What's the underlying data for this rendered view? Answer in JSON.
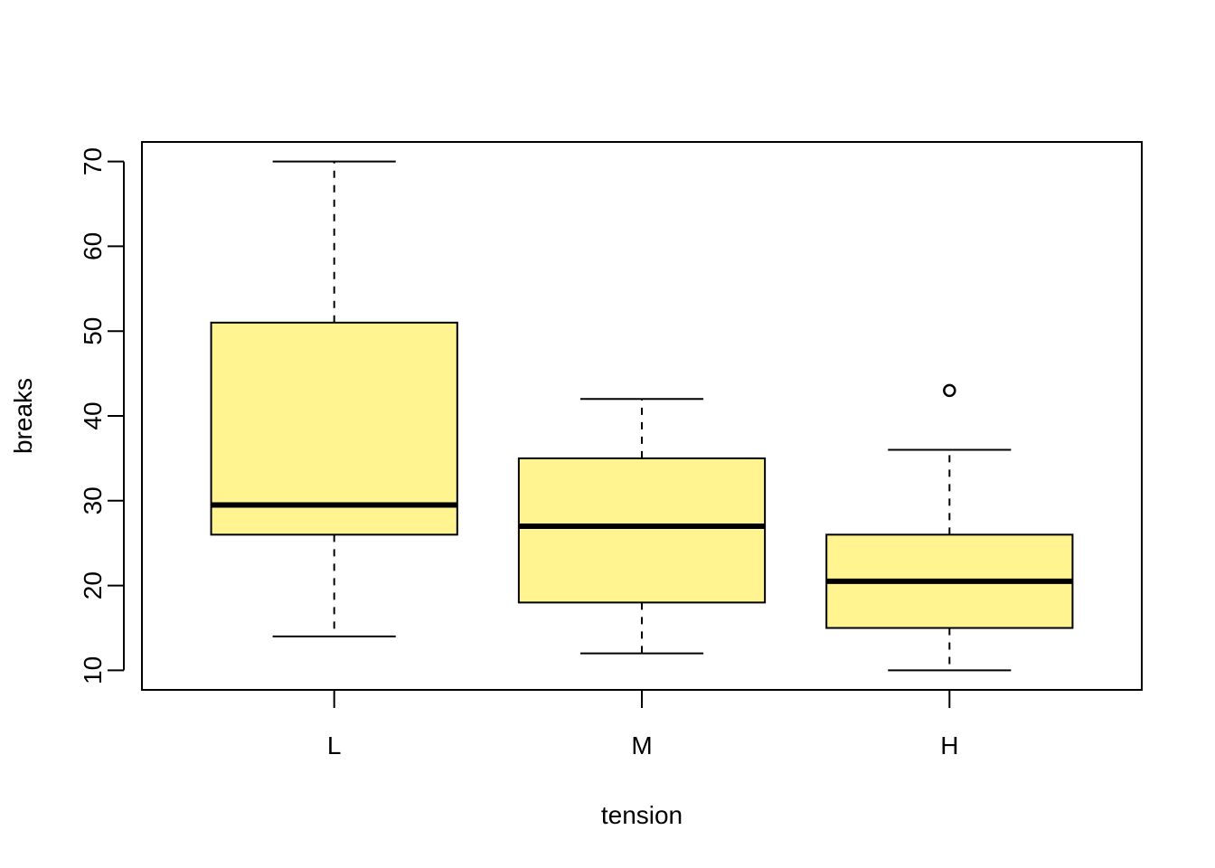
{
  "chart_data": {
    "type": "boxplot",
    "title": "",
    "xlabel": "tension",
    "ylabel": "breaks",
    "categories": [
      "L",
      "M",
      "H"
    ],
    "ylim": [
      7.7,
      72.3
    ],
    "yticks": [
      10,
      20,
      30,
      40,
      50,
      60,
      70
    ],
    "grid": false,
    "box_color": "#FFF490",
    "boxes": [
      {
        "category": "L",
        "whisker_low": 14,
        "q1": 26,
        "median": 29.5,
        "q3": 51,
        "whisker_high": 70,
        "outliers": []
      },
      {
        "category": "M",
        "whisker_low": 12,
        "q1": 18,
        "median": 27,
        "q3": 35,
        "whisker_high": 42,
        "outliers": []
      },
      {
        "category": "H",
        "whisker_low": 10,
        "q1": 15,
        "median": 20.5,
        "q3": 26,
        "whisker_high": 36,
        "outliers": [
          43
        ]
      }
    ]
  }
}
